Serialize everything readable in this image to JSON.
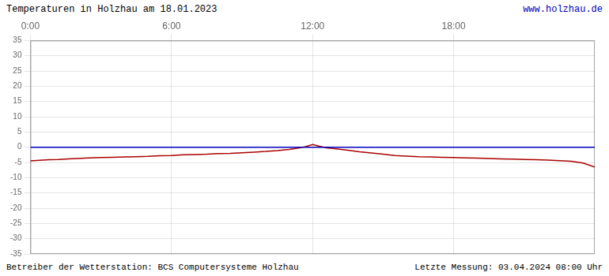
{
  "chart_data": {
    "type": "line",
    "title": "Temperaturen in Holzhau am 18.01.2023",
    "annotations": [
      {
        "text": "www.holzhau.de",
        "color": "#0000bb"
      },
      {
        "text": "Betreiber der Wetterstation: BCS Computersysteme Holzhau",
        "color": "#000000"
      },
      {
        "text": "Letzte Messung: 03.04.2024 08:00 Uhr",
        "color": "#000000"
      }
    ],
    "x": [
      0.0,
      0.4,
      0.8,
      1.2,
      1.6,
      2.0,
      2.5,
      3.0,
      3.5,
      4.0,
      4.5,
      5.0,
      5.5,
      6.0,
      6.5,
      7.0,
      7.5,
      8.0,
      8.5,
      9.0,
      9.5,
      10.0,
      10.5,
      11.0,
      11.4,
      11.7,
      12.0,
      12.3,
      12.6,
      13.0,
      13.5,
      14.0,
      14.5,
      15.0,
      15.5,
      16.0,
      16.5,
      17.0,
      17.5,
      18.0,
      18.5,
      19.0,
      19.5,
      20.0,
      20.5,
      21.0,
      21.5,
      22.0,
      22.5,
      23.0,
      23.5,
      24.0
    ],
    "series": [
      {
        "color": "#aa0000",
        "values": [
          -4.5,
          -4.3,
          -4.1,
          -4.0,
          -3.8,
          -3.7,
          -3.5,
          -3.4,
          -3.3,
          -3.2,
          -3.1,
          -3.0,
          -2.8,
          -2.7,
          -2.5,
          -2.4,
          -2.3,
          -2.1,
          -2.0,
          -1.8,
          -1.6,
          -1.4,
          -1.1,
          -0.7,
          -0.3,
          0.2,
          0.9,
          0.3,
          -0.2,
          -0.5,
          -1.0,
          -1.5,
          -1.9,
          -2.3,
          -2.7,
          -2.9,
          -3.1,
          -3.2,
          -3.3,
          -3.4,
          -3.5,
          -3.6,
          -3.7,
          -3.8,
          -3.9,
          -4.0,
          -4.1,
          -4.2,
          -4.4,
          -4.6,
          -5.2,
          -6.5
        ]
      }
    ],
    "reference_line": {
      "y": 0.0,
      "color": "#0000bb"
    },
    "xlim": [
      0,
      24
    ],
    "xticks": [
      {
        "value": 0,
        "label": "0:00"
      },
      {
        "value": 6,
        "label": "6:00"
      },
      {
        "value": 12,
        "label": "12:00"
      },
      {
        "value": 18,
        "label": "18:00"
      }
    ],
    "ylim": [
      -35,
      35
    ],
    "yticks": [
      -35,
      -30,
      -25,
      -20,
      -15,
      -10,
      -5,
      0,
      5,
      10,
      15,
      20,
      25,
      30,
      35
    ],
    "grid": true
  }
}
